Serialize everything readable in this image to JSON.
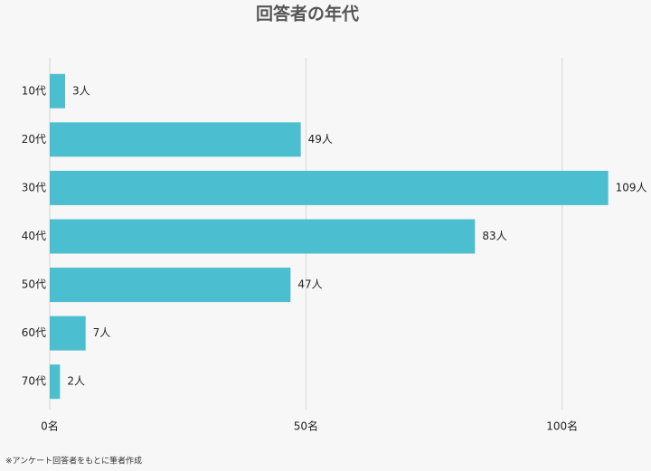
{
  "chart_data": {
    "type": "barh",
    "title": "回答者の年代",
    "categories": [
      "10代",
      "20代",
      "30代",
      "40代",
      "50代",
      "60代",
      "70代"
    ],
    "values": [
      3,
      49,
      109,
      83,
      47,
      7,
      2
    ],
    "value_labels": [
      "3人",
      "49人",
      "109人",
      "83人",
      "47人",
      "7人",
      "2人"
    ],
    "color": "#4bbfcf",
    "xlim": [
      0,
      117
    ],
    "xticks": [
      {
        "value": 0,
        "label": "0名"
      },
      {
        "value": 50,
        "label": "50名"
      },
      {
        "value": 100,
        "label": "100名"
      }
    ],
    "grid": true,
    "note": "※アンケート回答者をもとに筆者作成"
  }
}
